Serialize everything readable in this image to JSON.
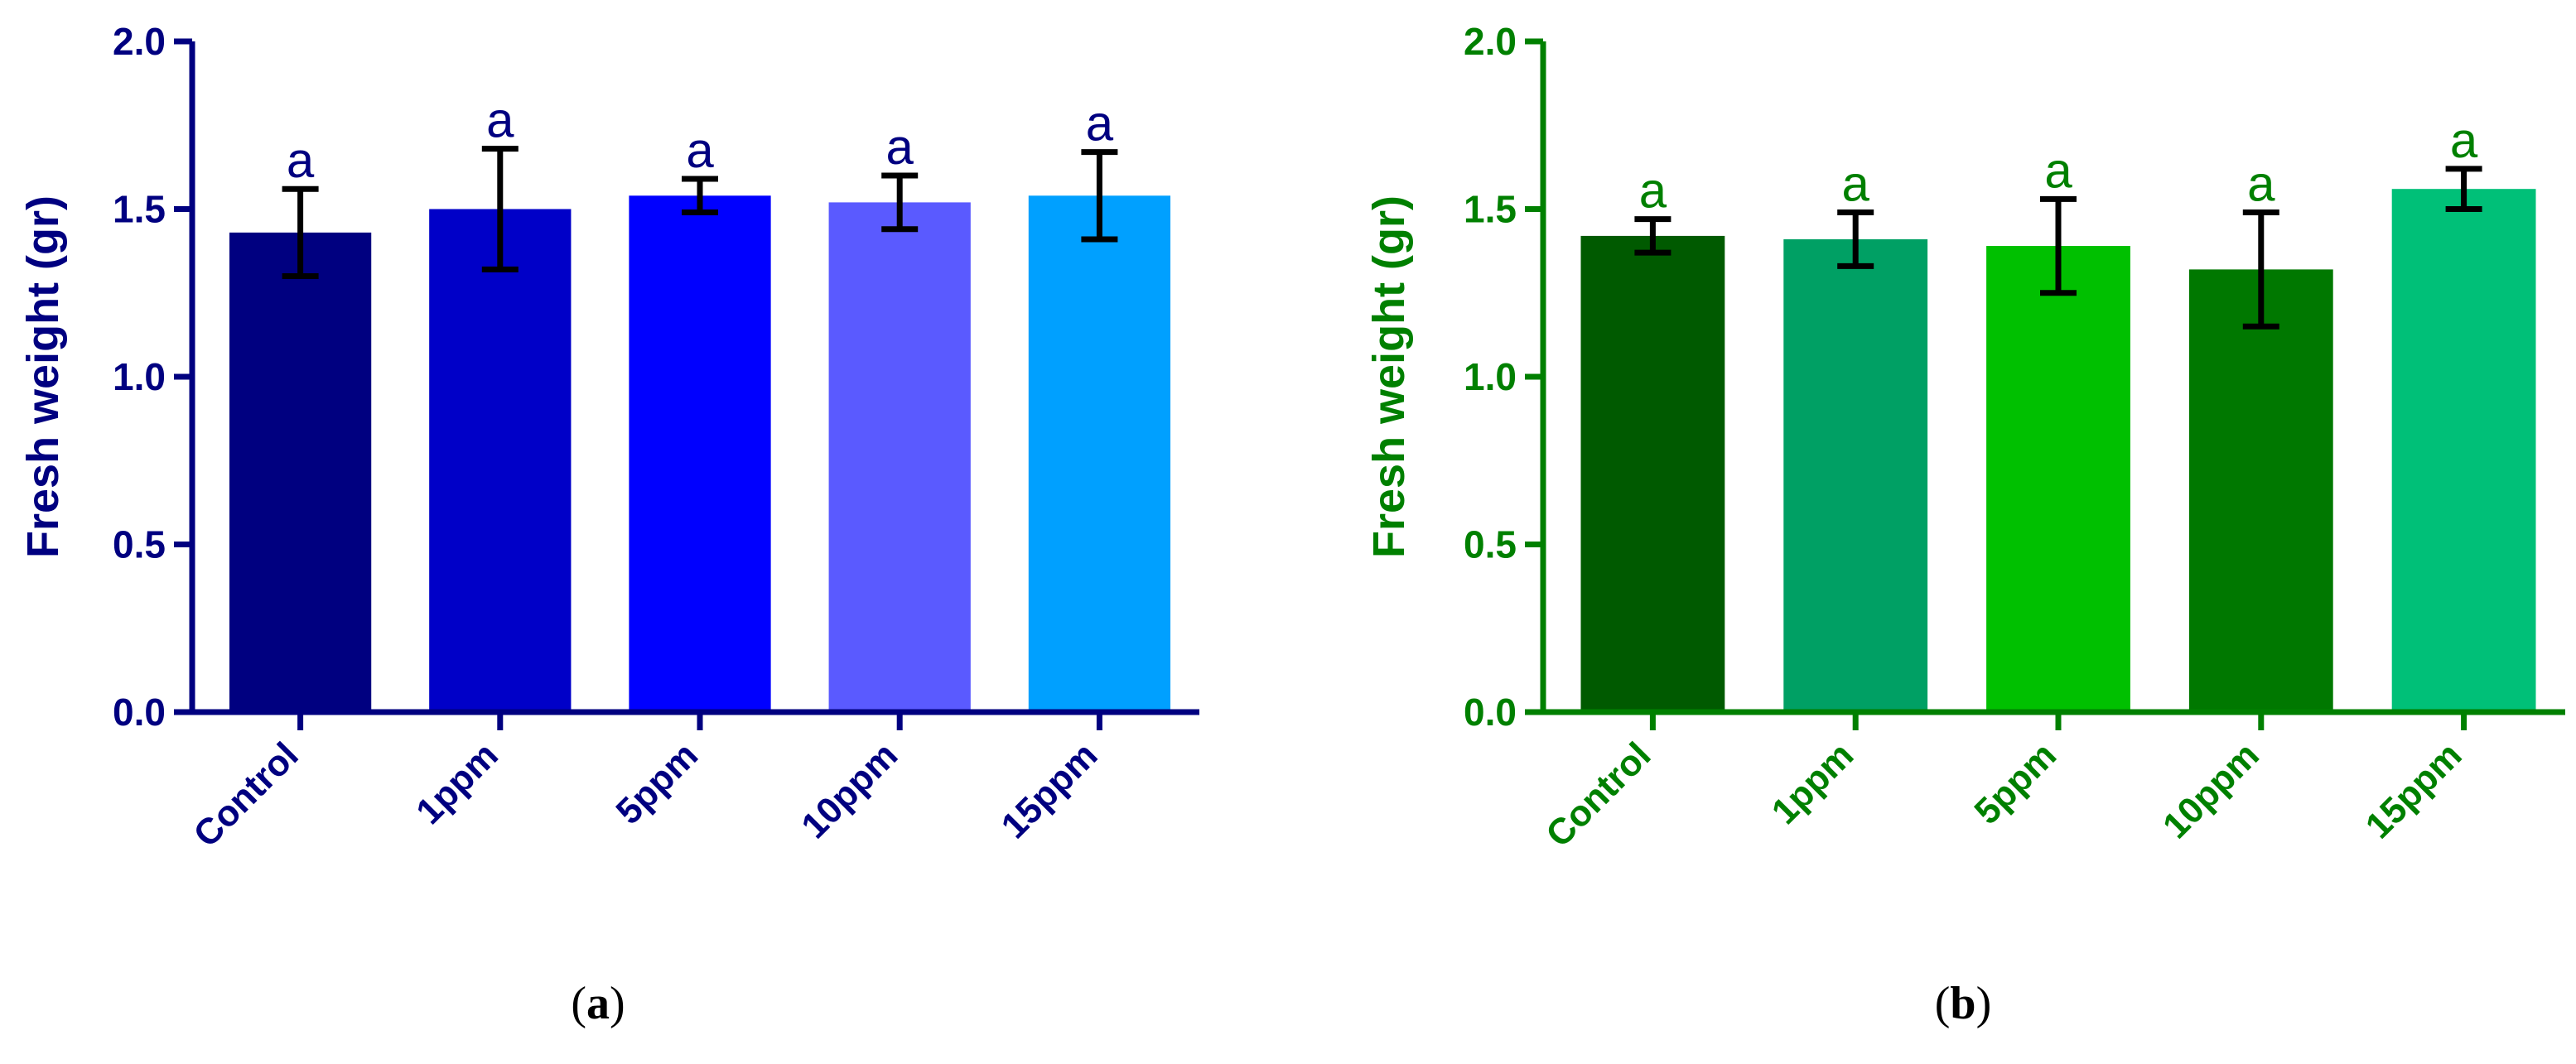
{
  "chart_data": [
    {
      "type": "bar",
      "panel_label": "a",
      "categories": [
        "Control",
        "1ppm",
        "5ppm",
        "10ppm",
        "15ppm"
      ],
      "values": [
        1.43,
        1.5,
        1.54,
        1.52,
        1.54
      ],
      "errors": [
        0.13,
        0.18,
        0.05,
        0.08,
        0.13
      ],
      "significance": [
        "a",
        "a",
        "a",
        "a",
        "a"
      ],
      "bar_colors": [
        "#000080",
        "#0000C8",
        "#0000FF",
        "#5A5AFF",
        "#00A0FF"
      ],
      "axis_color": "#000080",
      "ylabel": "Fresh weight (gr)",
      "yticks": [
        "0.0",
        "0.5",
        "1.0",
        "1.5",
        "2.0"
      ],
      "ylim": [
        0,
        2.0
      ]
    },
    {
      "type": "bar",
      "panel_label": "b",
      "categories": [
        "Control",
        "1ppm",
        "5ppm",
        "10ppm",
        "15ppm"
      ],
      "values": [
        1.42,
        1.41,
        1.39,
        1.32,
        1.56
      ],
      "errors": [
        0.05,
        0.08,
        0.14,
        0.17,
        0.06
      ],
      "significance": [
        "a",
        "a",
        "a",
        "a",
        "a"
      ],
      "bar_colors": [
        "#005A00",
        "#00A064",
        "#00C000",
        "#007800",
        "#00C078"
      ],
      "axis_color": "#008000",
      "ylabel": "Fresh weight (gr)",
      "yticks": [
        "0.0",
        "0.5",
        "1.0",
        "1.5",
        "2.0"
      ],
      "ylim": [
        0,
        2.0
      ]
    }
  ],
  "captions": {
    "a": "a",
    "b": "b"
  }
}
